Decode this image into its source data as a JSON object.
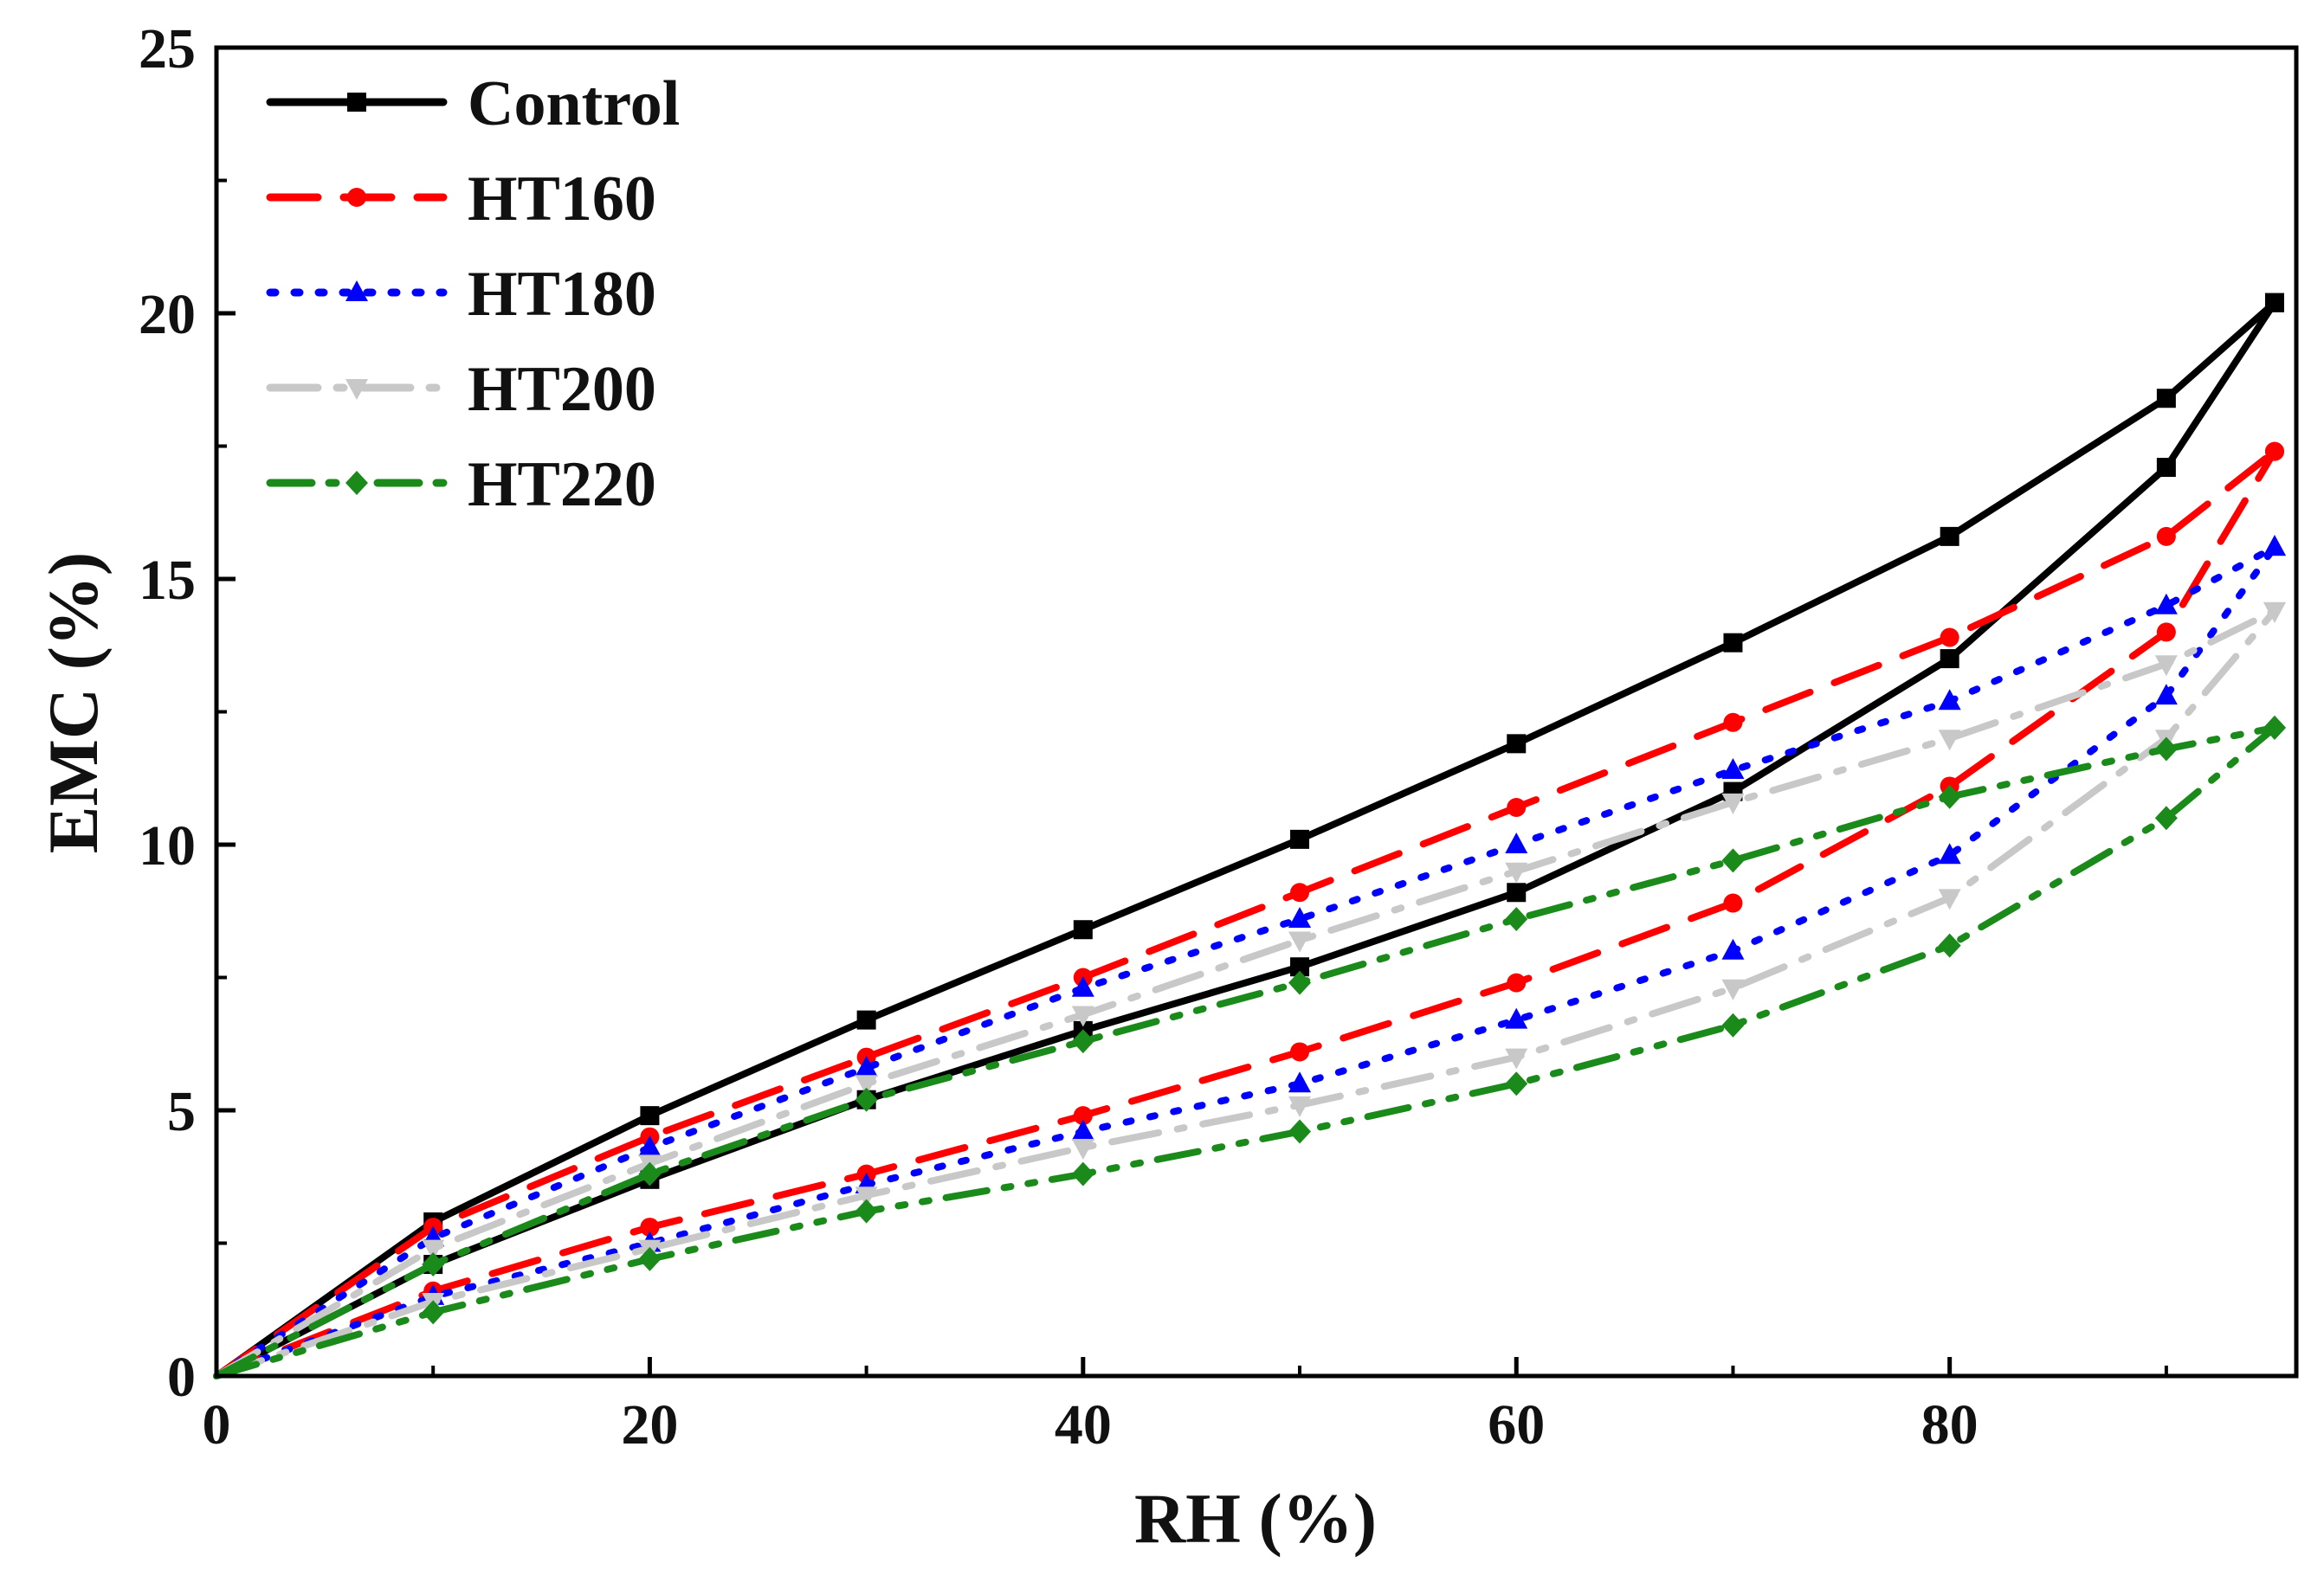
{
  "chart_data": {
    "type": "line",
    "title": "",
    "xlabel": "RH (%)",
    "ylabel": "EMC (%)",
    "xlim": [
      0,
      96
    ],
    "ylim": [
      0,
      25
    ],
    "xticks": [
      0,
      20,
      40,
      60,
      80
    ],
    "yticks": [
      0,
      5,
      10,
      15,
      20,
      25
    ],
    "xtick_labels": [
      "0",
      "20",
      "40",
      "60",
      "80"
    ],
    "ytick_labels": [
      "0",
      "5",
      "10",
      "15",
      "20",
      "25"
    ],
    "grid": false,
    "legend_position": "top-left",
    "series": [
      {
        "name": "Control",
        "color": "#000000",
        "dash": "solid",
        "marker": "square",
        "adsorption": {
          "x": [
            0,
            10,
            20,
            30,
            40,
            50,
            60,
            70,
            80,
            90,
            95
          ],
          "y": [
            0,
            2.1,
            3.7,
            5.2,
            6.5,
            7.7,
            9.1,
            11.0,
            13.5,
            17.1,
            20.2
          ]
        },
        "desorption": {
          "x": [
            0,
            10,
            20,
            30,
            40,
            50,
            60,
            70,
            80,
            90,
            95
          ],
          "y": [
            0,
            2.9,
            4.9,
            6.7,
            8.4,
            10.1,
            11.9,
            13.8,
            15.8,
            18.4,
            20.2
          ]
        }
      },
      {
        "name": "HT160",
        "color": "#ff0000",
        "dash": "dash",
        "marker": "circle",
        "adsorption": {
          "x": [
            0,
            10,
            20,
            30,
            40,
            50,
            60,
            70,
            80,
            90,
            95
          ],
          "y": [
            0,
            1.6,
            2.8,
            3.8,
            4.9,
            6.1,
            7.4,
            8.9,
            11.1,
            14.0,
            17.4
          ]
        },
        "desorption": {
          "x": [
            0,
            10,
            20,
            30,
            40,
            50,
            60,
            70,
            80,
            90,
            95
          ],
          "y": [
            0,
            2.8,
            4.5,
            6.0,
            7.5,
            9.1,
            10.7,
            12.3,
            13.9,
            15.8,
            17.4
          ]
        }
      },
      {
        "name": "HT180",
        "color": "#0000ff",
        "dash": "dot",
        "marker": "triangle-up",
        "adsorption": {
          "x": [
            0,
            10,
            20,
            30,
            40,
            50,
            60,
            70,
            80,
            90,
            95
          ],
          "y": [
            0,
            1.5,
            2.5,
            3.6,
            4.6,
            5.5,
            6.7,
            8.0,
            9.8,
            12.8,
            15.6
          ]
        },
        "desorption": {
          "x": [
            0,
            10,
            20,
            30,
            40,
            50,
            60,
            70,
            80,
            90,
            95
          ],
          "y": [
            0,
            2.6,
            4.3,
            5.8,
            7.3,
            8.6,
            10.0,
            11.4,
            12.7,
            14.5,
            15.6
          ]
        }
      },
      {
        "name": "HT200",
        "color": "#c8c8c8",
        "dash": "dash-dot",
        "marker": "triangle-down",
        "adsorption": {
          "x": [
            0,
            10,
            20,
            30,
            40,
            50,
            60,
            70,
            80,
            90,
            95
          ],
          "y": [
            0,
            1.4,
            2.4,
            3.4,
            4.3,
            5.1,
            6.0,
            7.3,
            9.0,
            12.0,
            14.4
          ]
        },
        "desorption": {
          "x": [
            0,
            10,
            20,
            30,
            40,
            50,
            60,
            70,
            80,
            90,
            95
          ],
          "y": [
            0,
            2.4,
            4.0,
            5.5,
            6.8,
            8.2,
            9.5,
            10.8,
            12.0,
            13.4,
            14.4
          ]
        }
      },
      {
        "name": "HT220",
        "color": "#1a8a1a",
        "dash": "dash-dot-dot",
        "marker": "diamond",
        "adsorption": {
          "x": [
            0,
            10,
            20,
            30,
            40,
            50,
            60,
            70,
            80,
            90,
            95
          ],
          "y": [
            0,
            1.2,
            2.2,
            3.1,
            3.8,
            4.6,
            5.5,
            6.6,
            8.1,
            10.5,
            12.2
          ]
        },
        "desorption": {
          "x": [
            0,
            10,
            20,
            30,
            40,
            50,
            60,
            70,
            80,
            90,
            95
          ],
          "y": [
            0,
            2.1,
            3.8,
            5.2,
            6.3,
            7.4,
            8.6,
            9.7,
            10.9,
            11.8,
            12.2
          ]
        }
      }
    ]
  }
}
